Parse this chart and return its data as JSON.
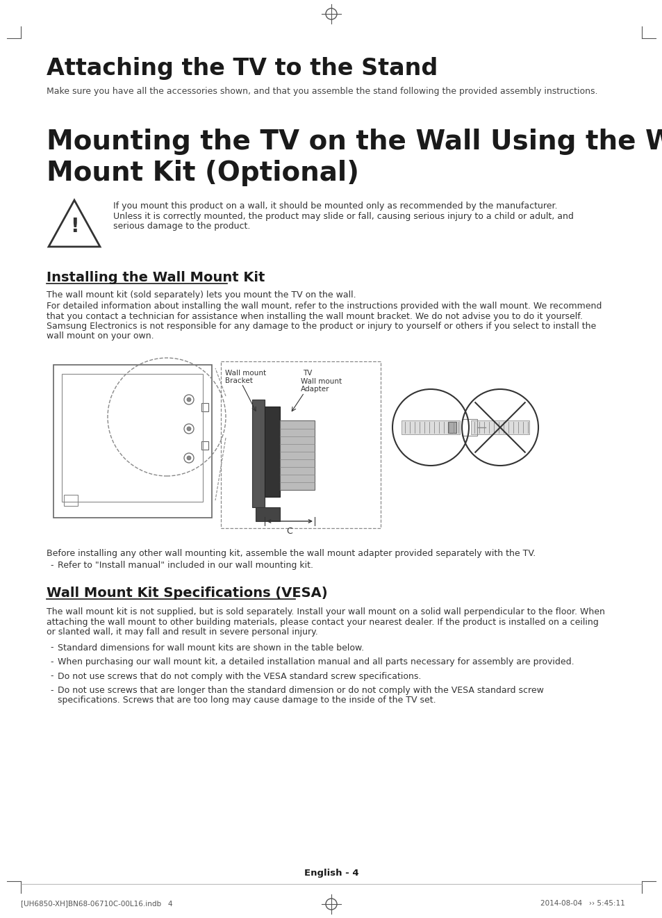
{
  "bg_color": "#ffffff",
  "text_color": "#1a1a1a",
  "title1": "Attaching the TV to the Stand",
  "subtitle1": "Make sure you have all the accessories shown, and that you assemble the stand following the provided assembly instructions.",
  "title2_line1": "Mounting the TV on the Wall Using the Wall",
  "title2_line2": "Mount Kit (Optional)",
  "warning_line1": "If you mount this product on a wall, it should be mounted only as recommended by the manufacturer.",
  "warning_line2": "Unless it is correctly mounted, the product may slide or fall, causing serious injury to a child or adult, and",
  "warning_line3": "serious damage to the product.",
  "sec1_title": "Installing the Wall Mount Kit",
  "sec1_body1": "The wall mount kit (sold separately) lets you mount the TV on the wall.",
  "sec1_body2_lines": [
    "For detailed information about installing the wall mount, refer to the instructions provided with the wall mount. We recommend",
    "that you contact a technician for assistance when installing the wall mount bracket. We do not advise you to do it yourself.",
    "Samsung Electronics is not responsible for any damage to the product or injury to yourself or others if you select to install the",
    "wall mount on your own."
  ],
  "diag_label_wallmount": "Wall mount",
  "diag_label_bracket": "Bracket",
  "diag_label_tv": "TV",
  "diag_label_wallmount_adapter": "Wall mount",
  "diag_label_adapter": "Adapter",
  "diag_label_c": "C",
  "before_text": "Before installing any other wall mounting kit, assemble the wall mount adapter provided separately with the TV.",
  "before_bullet": "Refer to \"Install manual\" included in our wall mounting kit.",
  "sec2_title": "Wall Mount Kit Specifications (VESA)",
  "sec2_body_lines": [
    "The wall mount kit is not supplied, but is sold separately. Install your wall mount on a solid wall perpendicular to the floor. When",
    "attaching the wall mount to other building materials, please contact your nearest dealer. If the product is installed on a ceiling",
    "or slanted wall, it may fall and result in severe personal injury."
  ],
  "sec2_bullets": [
    "Standard dimensions for wall mount kits are shown in the table below.",
    "When purchasing our wall mount kit, a detailed installation manual and all parts necessary for assembly are provided.",
    "Do not use screws that do not comply with the VESA standard screw specifications.",
    "Do not use screws that are longer than the standard dimension or do not comply with the VESA standard screw"
  ],
  "sec2_bullet4_line2": "specifications. Screws that are too long may cause damage to the inside of the TV set.",
  "footer_center": "English - 4",
  "footer_left": "[UH6850-XH]BN68-06710C-00L16.indb   4",
  "footer_right": "2014-08-04   ›› 5:45:11"
}
